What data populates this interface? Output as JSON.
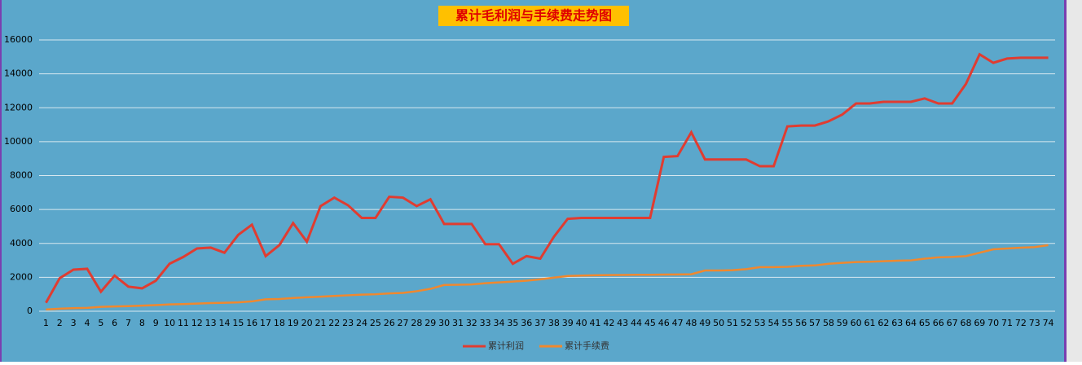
{
  "chart_data": {
    "type": "line",
    "title": "累计毛利润与手续费走势图",
    "categories": [
      1,
      2,
      3,
      4,
      5,
      6,
      7,
      8,
      9,
      10,
      11,
      12,
      13,
      14,
      15,
      16,
      17,
      18,
      19,
      20,
      21,
      22,
      23,
      24,
      25,
      26,
      27,
      28,
      29,
      30,
      31,
      32,
      33,
      34,
      35,
      36,
      37,
      38,
      39,
      40,
      41,
      42,
      43,
      44,
      45,
      46,
      47,
      48,
      49,
      50,
      51,
      52,
      53,
      54,
      55,
      56,
      57,
      58,
      59,
      60,
      61,
      62,
      63,
      64,
      65,
      66,
      67,
      68,
      69,
      70,
      71,
      72,
      73,
      74
    ],
    "series": [
      {
        "name": "累计利润",
        "color": "#e03c31",
        "values": [
          500,
          1950,
          2450,
          2500,
          1150,
          2100,
          1450,
          1350,
          1800,
          2800,
          3200,
          3700,
          3750,
          3450,
          4500,
          5100,
          3250,
          3900,
          5200,
          4100,
          6200,
          6700,
          6250,
          5500,
          5500,
          6750,
          6700,
          6200,
          6600,
          5150,
          5150,
          5150,
          3950,
          3950,
          2800,
          3250,
          3100,
          4400,
          5450,
          5500,
          5500,
          5500,
          5500,
          5500,
          5500,
          9100,
          9150,
          10550,
          8950,
          8950,
          8950,
          8950,
          8550,
          8550,
          10900,
          10950,
          10950,
          11200,
          11600,
          12250,
          12250,
          12350,
          12350,
          12350,
          12550,
          12250,
          12250,
          13400,
          15150,
          14650,
          14900,
          14950,
          14950,
          14950
        ]
      },
      {
        "name": "累计手续费",
        "color": "#f0882e",
        "values": [
          100,
          150,
          180,
          200,
          260,
          280,
          300,
          330,
          360,
          400,
          420,
          450,
          480,
          500,
          520,
          580,
          700,
          720,
          780,
          820,
          860,
          900,
          940,
          980,
          1000,
          1050,
          1080,
          1180,
          1320,
          1550,
          1560,
          1580,
          1650,
          1700,
          1750,
          1800,
          1880,
          1980,
          2080,
          2100,
          2120,
          2130,
          2140,
          2150,
          2150,
          2160,
          2170,
          2180,
          2400,
          2400,
          2420,
          2480,
          2600,
          2600,
          2620,
          2680,
          2700,
          2800,
          2850,
          2900,
          2920,
          2950,
          2980,
          3000,
          3100,
          3180,
          3200,
          3250,
          3450,
          3650,
          3700,
          3750,
          3780,
          3900
        ]
      }
    ],
    "ylim": [
      0,
      16000
    ],
    "yticks": [
      0,
      2000,
      4000,
      6000,
      8000,
      10000,
      12000,
      14000,
      16000
    ],
    "grid": true
  }
}
